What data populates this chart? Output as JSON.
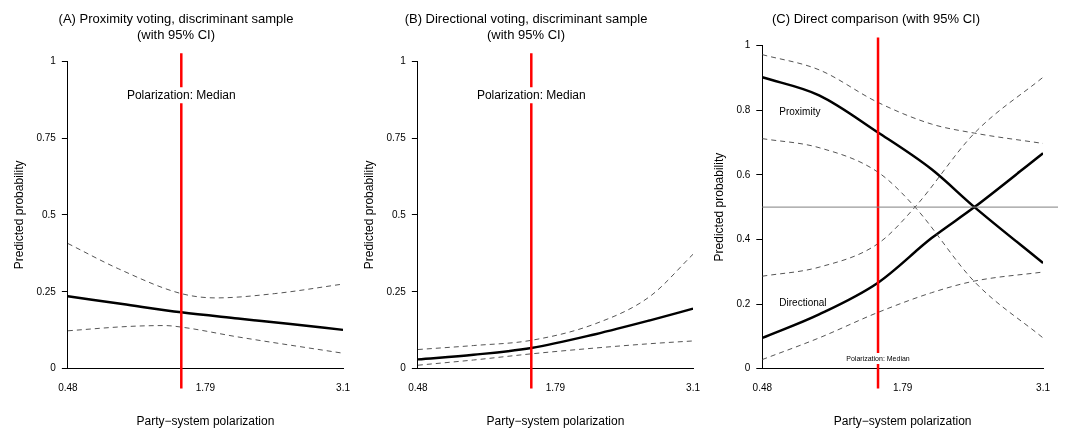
{
  "chart_data": [
    {
      "type": "line",
      "title": "(A) Proximity voting, discriminant sample\n(with 95% CI)",
      "xlabel": "Party−system polarization",
      "ylabel": "Predicted probability",
      "xlim": [
        0.48,
        3.1
      ],
      "xticks": [
        0.48,
        1.79,
        3.1
      ],
      "ylim": [
        0,
        1
      ],
      "yticks": [
        0,
        0.25,
        0.5,
        0.75,
        1
      ],
      "grid": false,
      "legend": false,
      "marker": "none",
      "series": [
        {
          "color": "#000000",
          "line_style": "solid",
          "x": [
            0.48,
            1.0,
            1.56,
            2.1,
            2.6,
            3.1
          ],
          "values": [
            0.235,
            0.21,
            0.183,
            0.163,
            0.145,
            0.126
          ]
        },
        {
          "color": "#555555",
          "line_style": "dashed",
          "x": [
            0.48,
            0.96,
            1.56,
            1.89,
            2.45,
            3.1
          ],
          "values": [
            0.407,
            0.325,
            0.244,
            0.23,
            0.244,
            0.275
          ]
        },
        {
          "color": "#555555",
          "line_style": "dashed",
          "x": [
            0.48,
            1.05,
            1.4,
            1.56,
            2.1,
            3.1
          ],
          "values": [
            0.123,
            0.137,
            0.14,
            0.135,
            0.103,
            0.05
          ]
        }
      ],
      "ref_lines": [
        {
          "axis": "x",
          "value": 1.56,
          "color": "#ff0000",
          "label": "Polarization: Median"
        }
      ]
    },
    {
      "type": "line",
      "title": "(B) Directional voting, discriminant sample\n(with 95% CI)",
      "xlabel": "Party−system polarization",
      "ylabel": "Predicted probability",
      "xlim": [
        0.48,
        3.1
      ],
      "xticks": [
        0.48,
        1.79,
        3.1
      ],
      "ylim": [
        0,
        1
      ],
      "yticks": [
        0,
        0.25,
        0.5,
        0.75,
        1
      ],
      "grid": false,
      "legend": false,
      "marker": "none",
      "series": [
        {
          "color": "#000000",
          "line_style": "solid",
          "x": [
            0.48,
            1.01,
            1.56,
            2.17,
            2.69,
            3.1
          ],
          "values": [
            0.03,
            0.045,
            0.067,
            0.112,
            0.157,
            0.195
          ]
        },
        {
          "color": "#555555",
          "line_style": "dashed",
          "x": [
            0.48,
            1.01,
            1.56,
            2.17,
            2.69,
            3.1
          ],
          "values": [
            0.062,
            0.075,
            0.092,
            0.146,
            0.235,
            0.372
          ]
        },
        {
          "color": "#555555",
          "line_style": "dashed",
          "x": [
            0.48,
            1.01,
            1.56,
            2.17,
            2.69,
            3.1
          ],
          "values": [
            0.011,
            0.028,
            0.048,
            0.067,
            0.081,
            0.09
          ]
        }
      ],
      "ref_lines": [
        {
          "axis": "x",
          "value": 1.56,
          "color": "#ff0000",
          "label": "Polarization: Median"
        }
      ]
    },
    {
      "type": "line",
      "title": "(C) Direct comparison (with 95% CI)",
      "xlabel": "Party−system polarization",
      "ylabel": "Predicted probability",
      "xlim": [
        0.48,
        3.1
      ],
      "xticks": [
        0.48,
        1.79,
        3.1
      ],
      "ylim": [
        0,
        1
      ],
      "yticks": [
        0,
        0.2,
        0.4,
        0.6,
        0.8,
        1
      ],
      "grid": false,
      "legend": false,
      "marker": "none",
      "series": [
        {
          "name": "Proximity",
          "color": "#000000",
          "line_style": "solid",
          "x": [
            0.48,
            1.01,
            1.56,
            2.06,
            2.46,
            3.1
          ],
          "values": [
            0.902,
            0.846,
            0.731,
            0.617,
            0.5,
            0.327
          ]
        },
        {
          "color": "#555555",
          "line_style": "dashed",
          "x": [
            0.48,
            1.01,
            1.56,
            2.06,
            2.46,
            3.1
          ],
          "values": [
            0.972,
            0.925,
            0.824,
            0.757,
            0.729,
            0.697
          ]
        },
        {
          "color": "#555555",
          "line_style": "dashed",
          "x": [
            0.48,
            1.01,
            1.56,
            1.905,
            2.46,
            3.1
          ],
          "values": [
            0.712,
            0.684,
            0.608,
            0.5,
            0.269,
            0.095
          ]
        },
        {
          "name": "Directional",
          "color": "#000000",
          "line_style": "solid",
          "x": [
            0.48,
            1.01,
            1.56,
            2.06,
            2.46,
            3.1
          ],
          "values": [
            0.095,
            0.168,
            0.266,
            0.404,
            0.5,
            0.667
          ]
        },
        {
          "color": "#555555",
          "line_style": "dashed",
          "x": [
            0.48,
            1.01,
            1.56,
            1.905,
            2.46,
            3.1
          ],
          "values": [
            0.286,
            0.314,
            0.387,
            0.5,
            0.729,
            0.902
          ]
        },
        {
          "color": "#555555",
          "line_style": "dashed",
          "x": [
            0.48,
            1.01,
            1.56,
            2.06,
            2.46,
            3.1
          ],
          "values": [
            0.028,
            0.095,
            0.174,
            0.235,
            0.271,
            0.299
          ]
        }
      ],
      "ref_lines": [
        {
          "axis": "x",
          "value": 1.56,
          "color": "#ff0000",
          "label": "Polarization: Median"
        },
        {
          "axis": "y",
          "value": 0.5,
          "color": "#808080"
        }
      ]
    }
  ]
}
